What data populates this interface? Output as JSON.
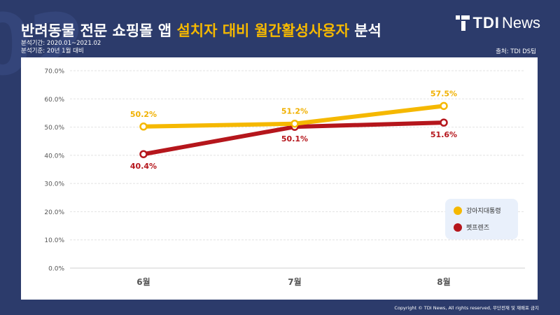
{
  "header": {
    "title_prefix": "반려동물 전문 쇼핑몰 앱 ",
    "title_highlight": "설치자 대비 월간활성사용자",
    "title_suffix": " 분석",
    "period": "분석기간: 2020.01~2021.02",
    "basis": "분석기준: 20년 1월 대비",
    "source": "출처: TDI DS팀",
    "logo_tdi": "TDI",
    "logo_news": "News",
    "bg_text": "02"
  },
  "footer": {
    "copyright": "Copyright © TDI News, All rights reserved, 무단전재 및 재배포 금지"
  },
  "colors": {
    "background": "#2c3b6b",
    "highlight": "#f5b800",
    "series1": "#f5b800",
    "series2": "#b5161c"
  },
  "chart_data": {
    "type": "line",
    "categories": [
      "6월",
      "7월",
      "8월"
    ],
    "ylim": [
      0,
      70
    ],
    "yticks": [
      "0.0%",
      "10.0%",
      "20.0%",
      "30.0%",
      "40.0%",
      "50.0%",
      "60.0%",
      "70.0%"
    ],
    "grid": true,
    "legend_position": "right",
    "series": [
      {
        "name": "강아지대통령",
        "values": [
          50.2,
          51.2,
          57.5
        ],
        "labels": [
          "50.2%",
          "51.2%",
          "57.5%"
        ],
        "color": "#f5b800"
      },
      {
        "name": "펫프렌즈",
        "values": [
          40.4,
          50.1,
          51.6
        ],
        "labels": [
          "40.4%",
          "50.1%",
          "51.6%"
        ],
        "color": "#b5161c"
      }
    ]
  }
}
